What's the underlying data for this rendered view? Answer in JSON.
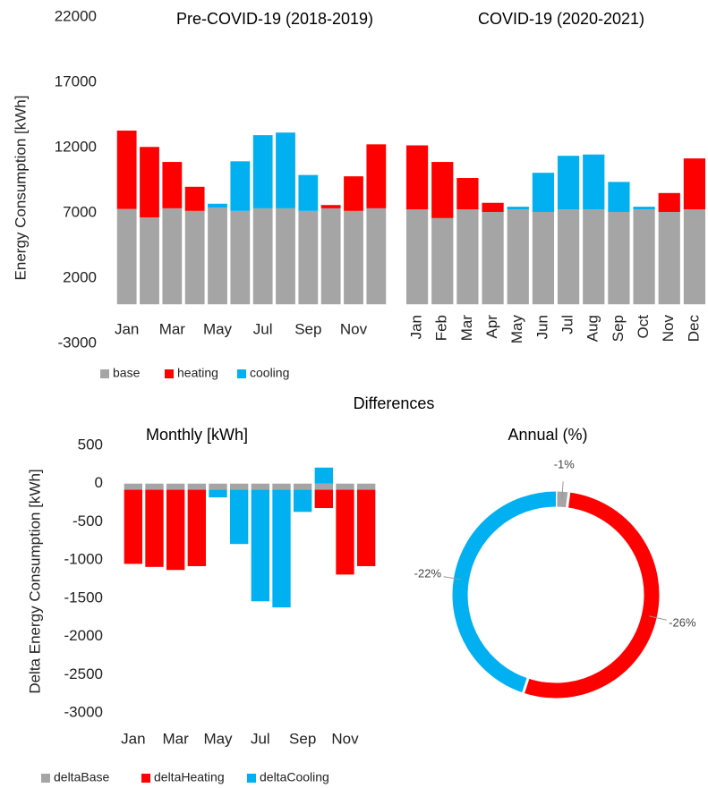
{
  "section_title": "Differences",
  "chart_data": [
    {
      "type": "stacked-bar",
      "title": "Pre-COVID-19 (2018-2019)",
      "ylabel": "Energy Consumption [kWh]",
      "ylim": [
        -3000,
        22000
      ],
      "yticks": [
        -3000,
        2000,
        7000,
        12000,
        17000,
        22000
      ],
      "categories": [
        "Jan",
        null,
        "Mar",
        null,
        "May",
        null,
        "Jul",
        null,
        "Sep",
        null,
        "Nov",
        null
      ],
      "legend": "bottom-left",
      "series": [
        {
          "name": "base",
          "color": "#a5a5a5",
          "values": [
            7300,
            6650,
            7350,
            7150,
            7400,
            7150,
            7350,
            7350,
            7150,
            7350,
            7150,
            7350
          ]
        },
        {
          "name": "heating",
          "color": "#ff0000",
          "values": [
            6000,
            5400,
            3550,
            1850,
            0,
            0,
            0,
            0,
            0,
            250,
            2650,
            4900
          ]
        },
        {
          "name": "cooling",
          "color": "#00b0f0",
          "values": [
            0,
            0,
            0,
            0,
            300,
            3800,
            5600,
            5800,
            2750,
            0,
            0,
            0
          ]
        }
      ]
    },
    {
      "type": "stacked-bar",
      "title": "COVID-19 (2020-2021)",
      "categories": [
        "Jan",
        "Feb",
        "Mar",
        "Apr",
        "May",
        "Jun",
        "Jul",
        "Aug",
        "Sep",
        "Oct",
        "Nov",
        "Dec"
      ],
      "rotate_labels": true,
      "series": [
        {
          "color": "#a5a5a5",
          "values": [
            7270,
            6600,
            7270,
            7070,
            7270,
            7070,
            7270,
            7270,
            7070,
            7270,
            7070,
            7270
          ]
        },
        {
          "color": "#ff0000",
          "values": [
            4900,
            4300,
            2400,
            700,
            0,
            0,
            0,
            0,
            0,
            0,
            1450,
            3900
          ]
        },
        {
          "color": "#00b0f0",
          "values": [
            0,
            0,
            0,
            0,
            200,
            3000,
            4100,
            4200,
            2300,
            200,
            0,
            0
          ]
        }
      ]
    },
    {
      "type": "stacked-bar",
      "title": "Monthly [kWh]",
      "ylabel": "Delta Energy Consumption [kWh]",
      "ylim": [
        -3000,
        500
      ],
      "yticks": [
        -3000,
        -2500,
        -2000,
        -1500,
        -1000,
        -500,
        0,
        500
      ],
      "categories": [
        "Jan",
        null,
        "Mar",
        null,
        "May",
        null,
        "Jul",
        null,
        "Sep",
        null,
        "Nov",
        null
      ],
      "legend": "bottom-left",
      "series": [
        {
          "name": "deltaBase",
          "color": "#a5a5a5",
          "values": [
            -80,
            -80,
            -80,
            -80,
            -80,
            -80,
            -80,
            -80,
            -80,
            -80,
            -80,
            -80
          ]
        },
        {
          "name": "deltaHeating",
          "color": "#ff0000",
          "values": [
            -970,
            -1010,
            -1050,
            -1000,
            0,
            0,
            0,
            0,
            0,
            -240,
            -1110,
            -1000
          ]
        },
        {
          "name": "deltaCooling",
          "color": "#00b0f0",
          "values": [
            0,
            0,
            0,
            0,
            -100,
            -710,
            -1460,
            -1540,
            -290,
            210,
            0,
            0
          ]
        }
      ]
    },
    {
      "type": "donut",
      "title": "Annual (%)",
      "values": [
        -1,
        -26,
        -22
      ],
      "value_labels": [
        "-1%",
        "-26%",
        "-22%"
      ],
      "colors": [
        "#a5a5a5",
        "#ff0000",
        "#00b0f0"
      ]
    }
  ]
}
